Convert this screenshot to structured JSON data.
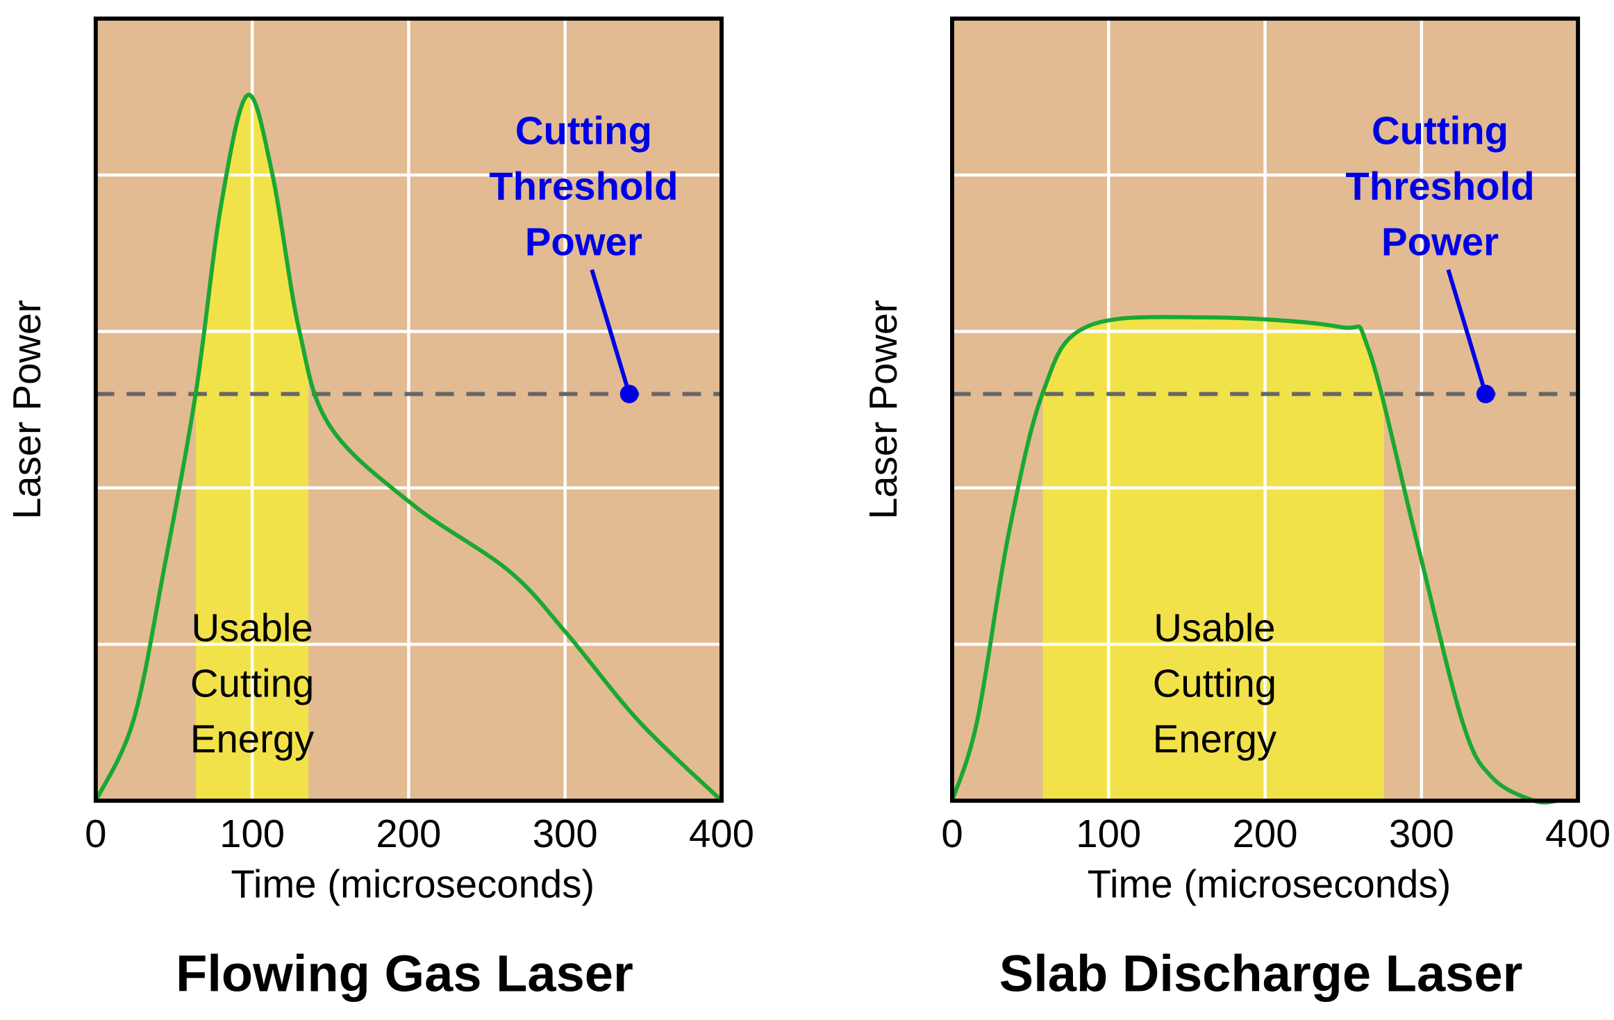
{
  "chart_data": [
    {
      "type": "line",
      "title": "Flowing Gas Laser",
      "x_label": "Time (microseconds)",
      "y_label": "Laser Power",
      "xlim": [
        0,
        400
      ],
      "xticks": [
        0,
        100,
        200,
        300,
        400
      ],
      "ylim": [
        0,
        5
      ],
      "yticks": [
        1,
        2,
        3,
        4
      ],
      "grid": true,
      "background": "#e2bb93",
      "series": [
        {
          "color": "#1aa832",
          "x": [
            0,
            24,
            44,
            64,
            80,
            97,
            113,
            130,
            150,
            203,
            264,
            301,
            347,
            400
          ],
          "values": [
            0,
            0.51,
            1.5,
            2.61,
            3.8,
            4.51,
            4.0,
            3.01,
            2.39,
            1.89,
            1.47,
            1.07,
            0.51,
            0
          ]
        }
      ],
      "shade": {
        "x": [
          64,
          136
        ],
        "color": "#f2e24a",
        "lines": [
          "Usable",
          "Cutting",
          "Energy"
        ]
      },
      "threshold": {
        "value": 2.6,
        "x": 341,
        "color": "#0000e6",
        "lines": [
          "Cutting",
          "Threshold",
          "Power"
        ]
      }
    },
    {
      "type": "line",
      "title": "Slab Discharge Laser",
      "x_label": "Time (microseconds)",
      "y_label": "Laser Power",
      "xlim": [
        0,
        400
      ],
      "xticks": [
        0,
        100,
        200,
        300,
        400
      ],
      "ylim": [
        0,
        5
      ],
      "yticks": [
        1,
        2,
        3,
        4
      ],
      "grid": true,
      "background": "#e2bb93",
      "series": [
        {
          "color": "#1aa832",
          "x": [
            0,
            16,
            36,
            58,
            86,
            161,
            247,
            266,
            296,
            326,
            345,
            372,
            387
          ],
          "values": [
            0,
            0.51,
            1.7,
            2.61,
            3.03,
            3.09,
            3.03,
            2.89,
            1.7,
            0.51,
            0.15,
            0,
            0
          ]
        }
      ],
      "shade": {
        "x": [
          58,
          276
        ],
        "color": "#f2e24a",
        "lines": [
          "Usable",
          "Cutting",
          "Energy"
        ]
      },
      "threshold": {
        "value": 2.6,
        "x": 341,
        "color": "#0000e6",
        "lines": [
          "Cutting",
          "Threshold",
          "Power"
        ]
      }
    }
  ]
}
